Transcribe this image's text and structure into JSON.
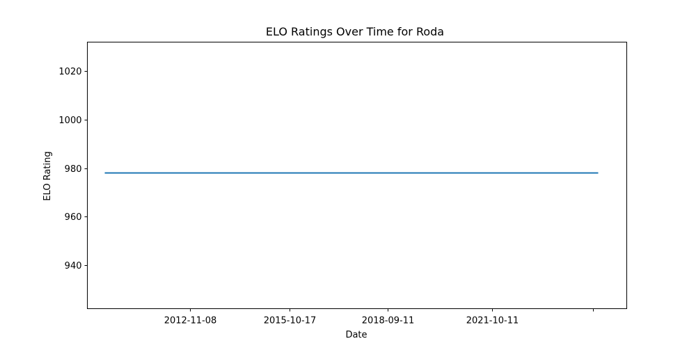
{
  "chart_data": {
    "type": "line",
    "title": "ELO Ratings Over Time for Roda",
    "xlabel": "Date",
    "ylabel": "ELO Rating",
    "ylim": [
      922,
      1032
    ],
    "y_ticks": [
      940,
      960,
      980,
      1000,
      1020
    ],
    "x_ticks": [
      "2012-11-08",
      "2015-10-17",
      "2018-09-11",
      "2021-10-11",
      ""
    ],
    "xlim": [
      "2009-11-01",
      "2025-10-01"
    ],
    "grid": false,
    "legend": "none",
    "series": [
      {
        "color": "#1f77b4",
        "points": [
          {
            "x": "2010-05-15",
            "y": 978
          },
          {
            "x": "2024-11-20",
            "y": 978
          }
        ]
      }
    ]
  }
}
